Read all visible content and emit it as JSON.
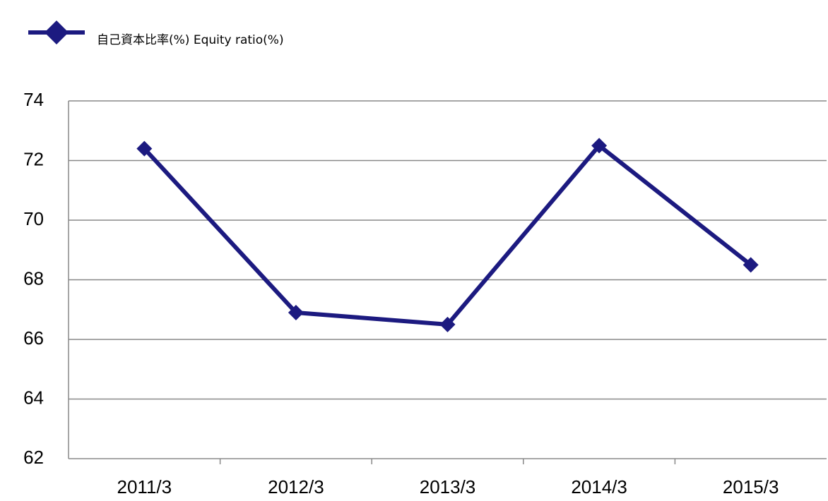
{
  "chart_data": {
    "type": "line",
    "categories": [
      "2011/3",
      "2012/3",
      "2013/3",
      "2014/3",
      "2015/3"
    ],
    "series": [
      {
        "name": "自己資本比率(%) Equity ratio(%)",
        "color": "#1c1a80",
        "values": [
          72.4,
          66.9,
          66.5,
          72.5,
          68.5
        ]
      }
    ],
    "ylim": [
      62,
      74
    ],
    "yticks": [
      62,
      64,
      66,
      68,
      70,
      72,
      74
    ],
    "grid": true,
    "legend": "top-left"
  }
}
